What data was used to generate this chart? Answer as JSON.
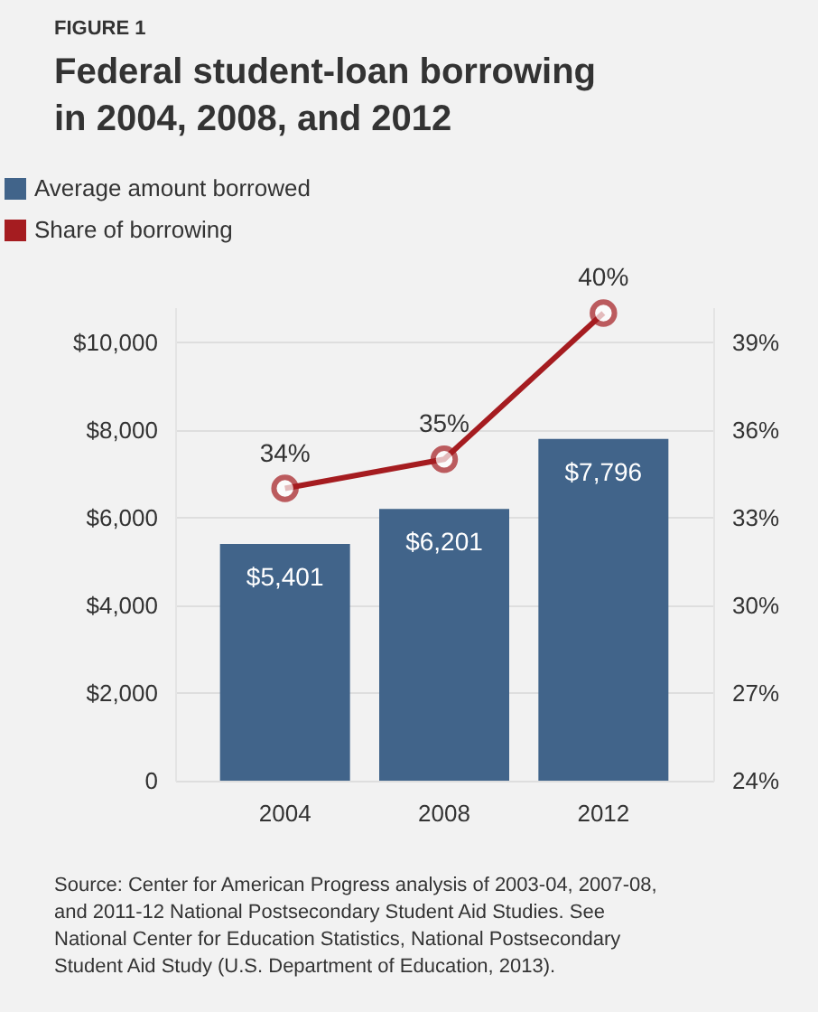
{
  "chart_data": {
    "type": "bar",
    "title": "Federal student-loan borrowing in 2004, 2008, and 2012",
    "annotations": [
      "FIGURE 1",
      "Source: Center for American Progress analysis of 2003-04, 2007-08, and 2011-12 National Postsecondary Student Aid Studies. See National Center for Education Statistics, National Postsecondary Student Aid Study (U.S. Department of Education, 2013)."
    ],
    "categories": [
      "2004",
      "2008",
      "2012"
    ],
    "series": [
      {
        "name": "Average amount borrowed",
        "color": "#41648a",
        "values": [
          5401,
          6201,
          7796
        ],
        "value_labels": [
          "$5,401",
          "$6,201",
          "$7,796"
        ]
      },
      {
        "name": "Share of borrowing",
        "type": "line",
        "axis": "y2",
        "color": "#a51c20",
        "marker": "circle",
        "values": [
          34,
          35,
          40
        ],
        "value_labels": [
          "34%",
          "35%",
          "40%"
        ]
      }
    ],
    "ylim": [
      0,
      10800
    ],
    "yticks": [
      0,
      {
        "value": 2000,
        "label": "$2,000"
      },
      {
        "value": 4000,
        "label": "$4,000"
      },
      {
        "value": 6000,
        "label": "$6,000"
      },
      {
        "value": 8000,
        "label": "$8,000"
      },
      {
        "value": 10000,
        "label": "$10,000"
      }
    ],
    "y2lim": [
      24,
      40.2
    ],
    "y2ticks": [
      {
        "value": 24,
        "label": "24%"
      },
      {
        "value": 27,
        "label": "27%"
      },
      {
        "value": 30,
        "label": "30%"
      },
      {
        "value": 33,
        "label": "33%"
      },
      {
        "value": 36,
        "label": "36%"
      },
      {
        "value": 39,
        "label": "39%"
      }
    ],
    "grid": "y",
    "legend": "top left"
  }
}
